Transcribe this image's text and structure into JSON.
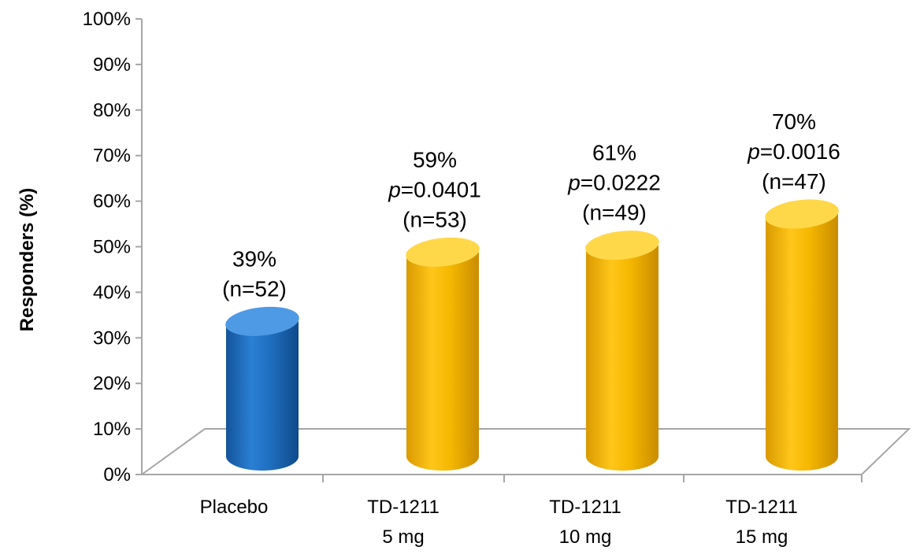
{
  "chart_data": {
    "type": "bar",
    "title": "",
    "ylabel": "Responders (%)",
    "xlabel": "",
    "ylim": [
      0,
      100
    ],
    "yticks": [
      0,
      10,
      20,
      30,
      40,
      50,
      60,
      70,
      80,
      90,
      100
    ],
    "ytick_suffix": "%",
    "grid": false,
    "style": "3d-cylinder",
    "categories": [
      {
        "line1": "Placebo",
        "line2": ""
      },
      {
        "line1": "TD-1211",
        "line2": "5 mg"
      },
      {
        "line1": "TD-1211",
        "line2": "10 mg"
      },
      {
        "line1": "TD-1211",
        "line2": "15 mg"
      }
    ],
    "values": [
      39,
      59,
      61,
      70
    ],
    "value_labels": [
      "39%",
      "59%",
      "61%",
      "70%"
    ],
    "p_values": [
      "",
      "0.0401",
      "0.0222",
      "0.0016"
    ],
    "p_prefix": "p",
    "n_labels": [
      "(n=52)",
      "(n=53)",
      "(n=49)",
      "(n=47)"
    ],
    "colors": {
      "placebo": "#1f6fc1",
      "placebo_light": "#4f9ae4",
      "treatment": "#f2b600",
      "treatment_light": "#ffd84a",
      "axis": "#a6a6a6"
    },
    "bar_colors": [
      "placebo",
      "treatment",
      "treatment",
      "treatment"
    ]
  }
}
